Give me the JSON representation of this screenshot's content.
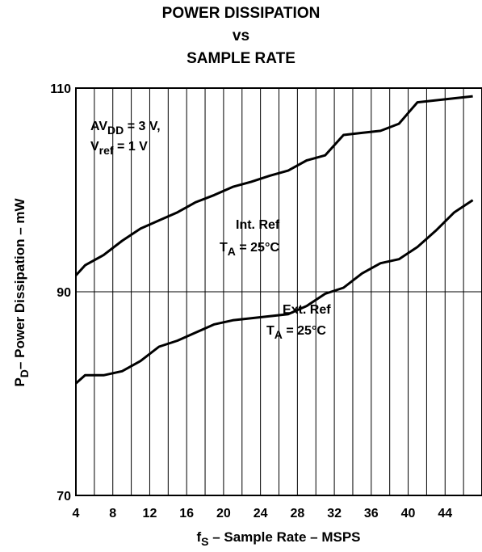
{
  "chart_data": {
    "type": "line",
    "title_lines": [
      "POWER DISSIPATION",
      "vs",
      "SAMPLE RATE"
    ],
    "xlabel": {
      "main": "f",
      "sub": "S",
      "rest": " – Sample Rate – MSPS"
    },
    "ylabel": {
      "main": "P",
      "sub": "D",
      "rest": "– Power Dissipation – mW"
    },
    "xlim": [
      4,
      48
    ],
    "ylim": [
      70,
      110
    ],
    "xticks": [
      4,
      8,
      12,
      16,
      20,
      24,
      28,
      32,
      36,
      40,
      44
    ],
    "yticks": [
      70,
      90,
      110
    ],
    "x_gridlines": [
      4,
      6,
      8,
      10,
      12,
      14,
      16,
      18,
      20,
      22,
      24,
      26,
      28,
      30,
      32,
      34,
      36,
      38,
      40,
      42,
      44,
      46,
      48
    ],
    "y_gridlines": [
      90,
      110
    ],
    "conditions": {
      "line1": {
        "main": "AV",
        "sub": "DD",
        "rest": " = 3 V,"
      },
      "line2": {
        "main": "V",
        "sub": "ref",
        "rest": " = 1 V"
      }
    },
    "series": [
      {
        "name": "Int. Ref",
        "label_line1": "Int. Ref",
        "label_line2": {
          "main": "T",
          "sub": "A",
          "rest": " = 25°C"
        },
        "x": [
          4,
          5,
          7,
          9,
          11,
          13,
          15,
          17,
          19,
          21,
          23,
          25,
          27,
          29,
          31,
          33,
          35,
          37,
          39,
          41,
          43,
          45,
          47
        ],
        "y": [
          91.6,
          92.6,
          93.6,
          95.0,
          96.2,
          97.0,
          97.8,
          98.8,
          99.5,
          100.3,
          100.8,
          101.4,
          101.9,
          102.9,
          103.4,
          105.4,
          105.6,
          105.8,
          106.5,
          108.6,
          108.8,
          109.0,
          109.2
        ]
      },
      {
        "name": "Ext. Ref",
        "label_line1": "Ext. Ref",
        "label_line2": {
          "main": "T",
          "sub": "A",
          "rest": " = 25°C"
        },
        "x": [
          4,
          5,
          7,
          9,
          11,
          13,
          15,
          17,
          19,
          21,
          23,
          25,
          27,
          29,
          31,
          33,
          35,
          37,
          39,
          41,
          43,
          45,
          47
        ],
        "y": [
          81.0,
          81.8,
          81.8,
          82.2,
          83.2,
          84.6,
          85.2,
          86.0,
          86.8,
          87.2,
          87.4,
          87.6,
          87.8,
          88.6,
          89.8,
          90.4,
          91.8,
          92.8,
          93.2,
          94.4,
          96.0,
          97.8,
          99.0
        ]
      }
    ]
  }
}
